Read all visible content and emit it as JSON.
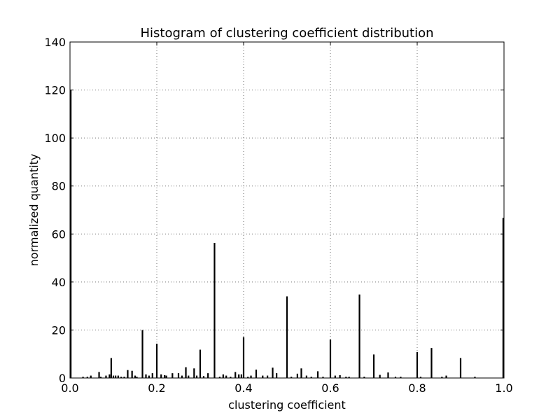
{
  "chart_data": {
    "type": "bar",
    "title": "Histogram of clustering coefficient distribution",
    "xlabel": "clustering coefficient",
    "ylabel": "normalized quantity",
    "xlim": [
      0.0,
      1.0
    ],
    "ylim": [
      0,
      140
    ],
    "xticks": [
      "0.0",
      "0.2",
      "0.4",
      "0.6",
      "0.8",
      "1.0"
    ],
    "yticks": [
      "0",
      "20",
      "40",
      "60",
      "80",
      "100",
      "120",
      "140"
    ],
    "grid": true,
    "series": [
      {
        "x": [
          0.0,
          0.03,
          0.04,
          0.048,
          0.067,
          0.071,
          0.083,
          0.091,
          0.095,
          0.1,
          0.105,
          0.111,
          0.118,
          0.125,
          0.133,
          0.143,
          0.15,
          0.154,
          0.167,
          0.175,
          0.182,
          0.19,
          0.2,
          0.21,
          0.218,
          0.222,
          0.236,
          0.25,
          0.258,
          0.267,
          0.273,
          0.286,
          0.292,
          0.3,
          0.308,
          0.318,
          0.333,
          0.345,
          0.353,
          0.36,
          0.37,
          0.381,
          0.389,
          0.395,
          0.4,
          0.41,
          0.417,
          0.429,
          0.444,
          0.455,
          0.467,
          0.476,
          0.5,
          0.51,
          0.524,
          0.533,
          0.545,
          0.556,
          0.571,
          0.583,
          0.6,
          0.611,
          0.622,
          0.636,
          0.643,
          0.667,
          0.678,
          0.7,
          0.714,
          0.733,
          0.75,
          0.762,
          0.8,
          0.808,
          0.833,
          0.857,
          0.867,
          0.9,
          0.933,
          1.0
        ],
        "values": [
          120,
          0.5,
          0.5,
          1.0,
          2.5,
          0.5,
          1.0,
          1.5,
          8.3,
          1.0,
          1.0,
          1.0,
          0.5,
          0.5,
          3.3,
          3.0,
          1.0,
          0.5,
          20.0,
          1.5,
          1.0,
          2.0,
          14.3,
          1.5,
          1.2,
          1.0,
          2.0,
          2.0,
          1.0,
          4.5,
          1.0,
          4.0,
          1.0,
          11.8,
          0.8,
          2.0,
          56.3,
          0.5,
          1.5,
          1.0,
          0.5,
          2.5,
          1.5,
          1.5,
          17.0,
          0.5,
          1.0,
          3.5,
          1.0,
          1.0,
          4.3,
          2.0,
          34.0,
          0.5,
          1.8,
          4.0,
          1.0,
          0.5,
          2.8,
          0.5,
          16.0,
          1.0,
          1.2,
          0.5,
          0.5,
          34.8,
          0.5,
          9.8,
          1.3,
          2.3,
          0.5,
          0.5,
          10.8,
          0.5,
          12.5,
          0.5,
          1.0,
          8.3,
          0.5,
          66.7
        ]
      }
    ]
  }
}
